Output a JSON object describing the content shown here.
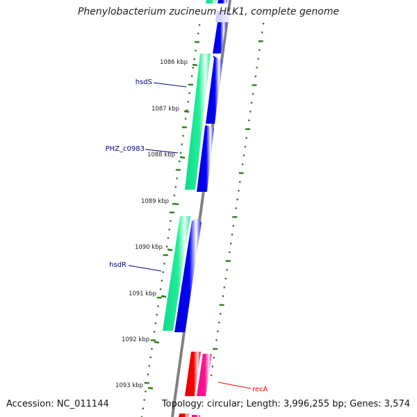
{
  "title": "Phenylobacterium zucineum HLK1, complete genome",
  "accession_text": "Accession: NC_011144",
  "topology_text": "Topology: circular; Length: 3,996,255 bp; Genes: 3,574",
  "colors": {
    "backbone": "#7f7f7f",
    "tick": "#2e7d1a",
    "forward_cds": "#0000ff",
    "reverse_cds": "#22ee99",
    "rna_forward": "#ff0000",
    "rna_reverse": "#ff1493",
    "gene_label": "#00008b",
    "rna_label": "#ff0000"
  },
  "ticks": [
    {
      "label": "1086 kbp"
    },
    {
      "label": "1087 kbp"
    },
    {
      "label": "1088 kbp"
    },
    {
      "label": "1089 kbp"
    },
    {
      "label": "1090 kbp"
    },
    {
      "label": "1091 kbp"
    },
    {
      "label": "1092 kbp"
    },
    {
      "label": "1093 kbp"
    }
  ],
  "gene_labels": [
    {
      "name": "hsdS",
      "type": "cds"
    },
    {
      "name": "PHZ_c0983",
      "type": "cds"
    },
    {
      "name": "hsdR",
      "type": "cds"
    },
    {
      "name": "recA",
      "type": "rna"
    }
  ]
}
